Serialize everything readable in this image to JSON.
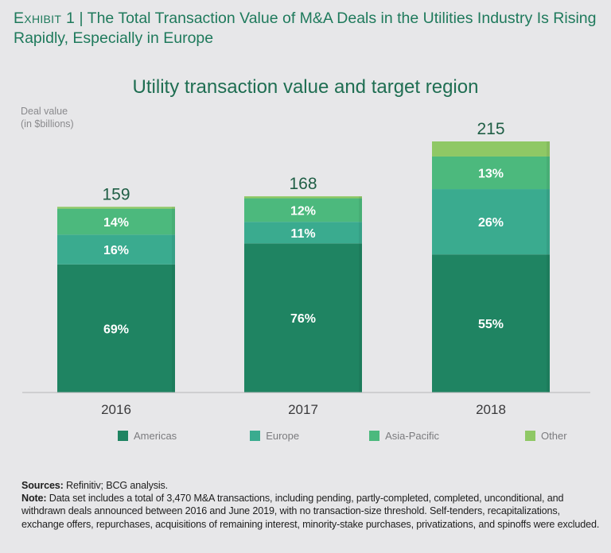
{
  "header": {
    "exhibit_label": "Exhibit 1",
    "separator": " | ",
    "title": "The Total Transaction Value of M&A Deals in the Utilities Industry Is Rising Rapidly, Especially in Europe"
  },
  "legend": [
    {
      "name": "Americas",
      "color": "#1f8462"
    },
    {
      "name": "Europe",
      "color": "#3aab8f"
    },
    {
      "name": "Asia-Pacific",
      "color": "#4cb97d"
    },
    {
      "name": "Other",
      "color": "#8fc865"
    }
  ],
  "chart_data": {
    "type": "bar",
    "stacked": true,
    "title": "Utility transaction value and target region",
    "ylabel_line1": "Deal value",
    "ylabel_line2": "(in $billions)",
    "xlabel": "",
    "categories": [
      "2016",
      "2017",
      "2018"
    ],
    "totals": [
      159,
      168,
      215
    ],
    "total_labels": [
      "159",
      "168",
      "215"
    ],
    "ylim": [
      0,
      215
    ],
    "grid": false,
    "legend_position": "bottom",
    "series": [
      {
        "name": "Americas",
        "values": [
          69,
          76,
          55
        ],
        "labels": [
          "69%",
          "76%",
          "55%"
        ],
        "unit": "percent"
      },
      {
        "name": "Europe",
        "values": [
          16,
          11,
          26
        ],
        "labels": [
          "16%",
          "11%",
          "26%"
        ],
        "unit": "percent"
      },
      {
        "name": "Asia-Pacific",
        "values": [
          14,
          12,
          13
        ],
        "labels": [
          "14%",
          "12%",
          "13%"
        ],
        "unit": "percent"
      },
      {
        "name": "Other",
        "values": [
          1,
          1,
          6
        ],
        "labels": [
          "",
          "",
          ""
        ],
        "unit": "percent"
      }
    ]
  },
  "notes": {
    "sources_label": "Sources:",
    "sources_text": " Refinitiv; BCG analysis.",
    "note_label": "Note:",
    "note_text": " Data set includes a total of 3,470 M&A transactions, including pending, partly-completed, completed, unconditional, and withdrawn deals announced between 2016 and June 2019, with no transaction-size threshold. Self-tenders, recapitalizations, exchange offers, repurchases, acquisitions of remaining interest, minority-stake purchases, privatizations, and spinoffs were excluded."
  }
}
